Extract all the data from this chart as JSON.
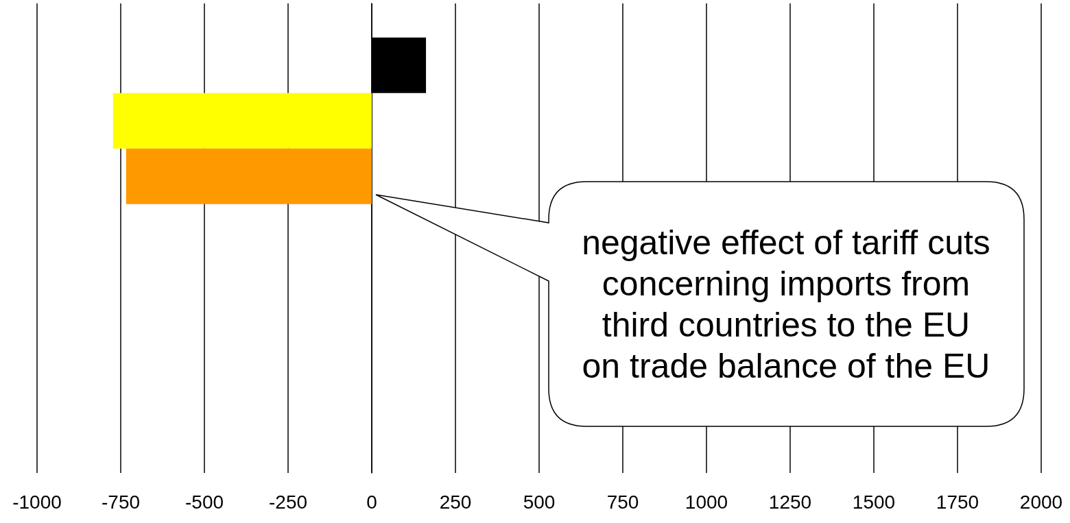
{
  "chart_data": {
    "type": "bar",
    "orientation": "horizontal",
    "categories": [
      null,
      null
    ],
    "series": [
      {
        "color": "#000000",
        "values": [
          162,
          null
        ]
      },
      {
        "color": "#ffff00",
        "values": [
          -773,
          null
        ]
      },
      {
        "color": "#ff9900",
        "values": [
          -734,
          null
        ]
      }
    ],
    "xlim": [
      -1000,
      2000
    ],
    "xticks": [
      -1000,
      -750,
      -500,
      -250,
      0,
      250,
      500,
      750,
      1000,
      1250,
      1500,
      1750,
      2000
    ],
    "grid": "x",
    "annotations": [
      "negative effect of tariff cuts concerning imports from third countries to the EU on trade balance of the EU"
    ]
  }
}
